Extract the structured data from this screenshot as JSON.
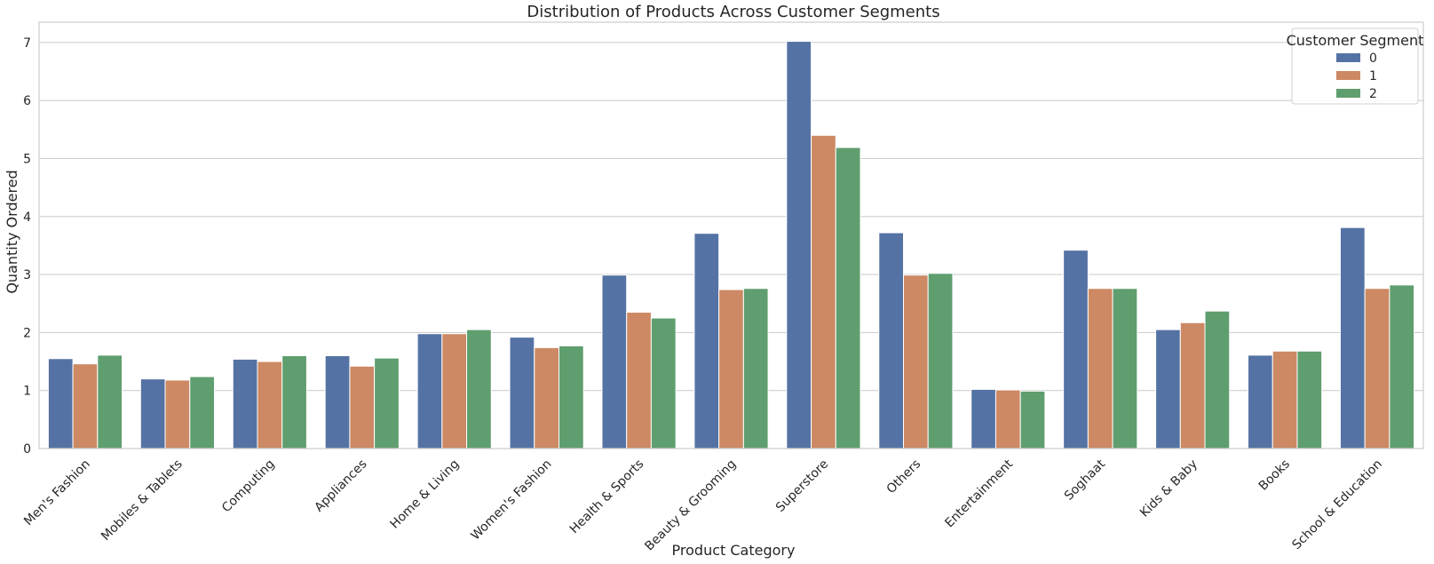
{
  "chart_data": {
    "type": "bar",
    "title": "Distribution of Products Across Customer Segments",
    "xlabel": "Product Category",
    "ylabel": "Quantity Ordered",
    "ylim": [
      0,
      7.35
    ],
    "yticks": [
      "0",
      "1",
      "2",
      "3",
      "4",
      "5",
      "6",
      "7"
    ],
    "grid": true,
    "categories": [
      "Men's Fashion",
      "Mobiles & Tablets",
      "Computing",
      "Appliances",
      "Home & Living",
      "Women's Fashion",
      "Health & Sports",
      "Beauty & Grooming",
      "Superstore",
      "Others",
      "Entertainment",
      "Soghaat",
      "Kids & Baby",
      "Books",
      "School & Education"
    ],
    "series": [
      {
        "name": "0",
        "color": "#5572a4",
        "values": [
          1.55,
          1.2,
          1.54,
          1.6,
          1.98,
          1.92,
          2.99,
          3.71,
          7.02,
          3.72,
          1.02,
          3.42,
          2.05,
          1.61,
          3.81
        ]
      },
      {
        "name": "1",
        "color": "#cc8963",
        "values": [
          1.46,
          1.18,
          1.5,
          1.42,
          1.98,
          1.74,
          2.35,
          2.74,
          5.4,
          2.99,
          1.01,
          2.76,
          2.17,
          1.68,
          2.76
        ]
      },
      {
        "name": "2",
        "color": "#5f9e6e",
        "values": [
          1.61,
          1.24,
          1.6,
          1.56,
          2.05,
          1.77,
          2.25,
          2.76,
          5.19,
          3.02,
          0.99,
          2.76,
          2.37,
          1.68,
          2.82
        ]
      }
    ],
    "legend": {
      "title": "Customer Segment",
      "position": "top-right"
    }
  }
}
